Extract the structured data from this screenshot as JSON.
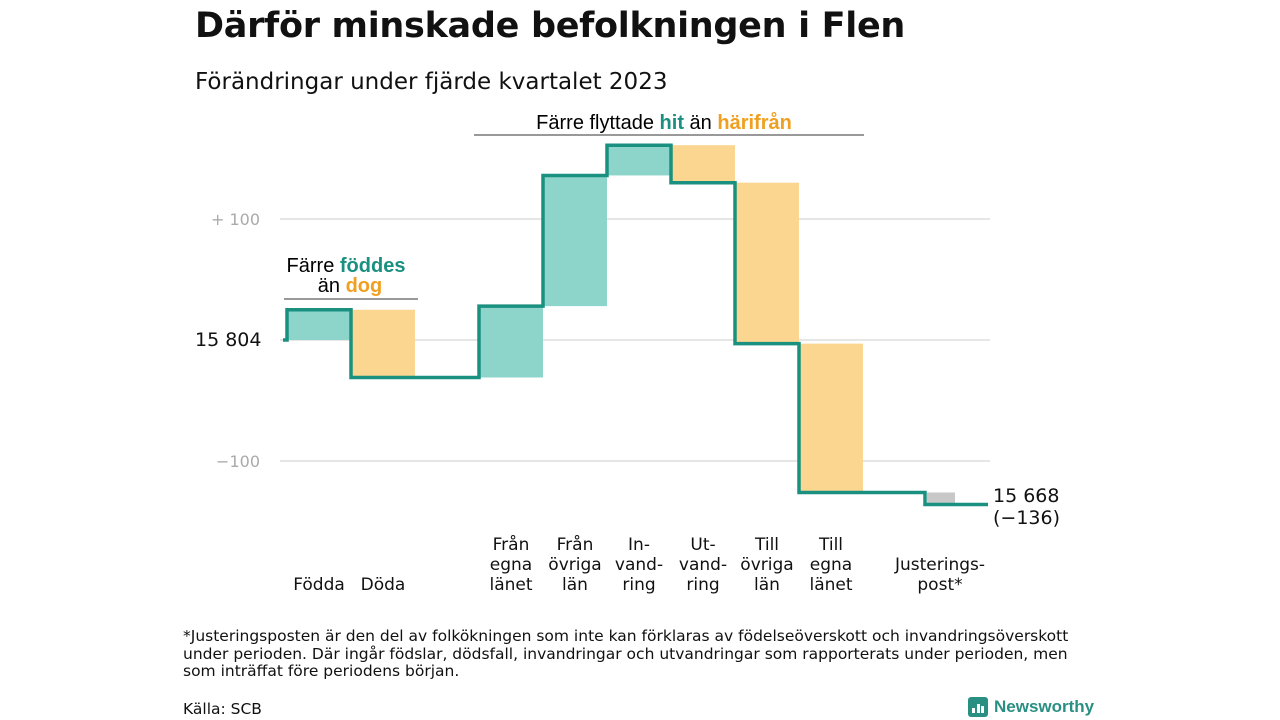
{
  "title": "Därför minskade befolkningen i Flen",
  "subtitle": "Förändringar under fjärde kvartalet 2023",
  "colors": {
    "increase": "#8dd5cb",
    "decrease": "#fad690",
    "adjustment": "#c8c8c8",
    "line": "#1a9080",
    "grid": "#dddddd"
  },
  "annotations": {
    "births": {
      "line1": "Färre",
      "hl1": "föddes",
      "line2": "än",
      "hl2": "dog"
    },
    "migration": {
      "pre": "Färre flyttade",
      "hl1": "hit",
      "mid": "än",
      "hl2": "härifrån"
    }
  },
  "chart_data": {
    "type": "waterfall",
    "title": "Därför minskade befolkningen i Flen",
    "subtitle": "Förändringar under fjärde kvartalet 2023",
    "start_label": "15  804",
    "start_value": 15804,
    "end_label": "15 668",
    "end_change_label": "(−136)",
    "end_value": 15668,
    "y_ticks": [
      {
        "value": 100,
        "label": "+  100"
      },
      {
        "value": -100,
        "label": "−100"
      }
    ],
    "ylim": [
      -140,
      170
    ],
    "grid": true,
    "categories": [
      {
        "lines": [
          "Födda"
        ],
        "value": 25
      },
      {
        "lines": [
          "Döda"
        ],
        "value": -56
      },
      {
        "lines": [
          "Från",
          "egna",
          "länet"
        ],
        "value": 59
      },
      {
        "lines": [
          "Från",
          "övriga",
          "län"
        ],
        "value": 108
      },
      {
        "lines": [
          "In-",
          "vand-",
          "ring"
        ],
        "value": 25
      },
      {
        "lines": [
          "Ut-",
          "vand-",
          "ring"
        ],
        "value": -31
      },
      {
        "lines": [
          "Till",
          "övriga",
          "län"
        ],
        "value": -133
      },
      {
        "lines": [
          "Till",
          "egna",
          "länet"
        ],
        "value": -123
      },
      {
        "lines": [
          "Justerings-",
          "post*"
        ],
        "value": -10
      }
    ],
    "x_gap_after": [
      1,
      7
    ]
  },
  "footnote": "*Justeringsposten är den del av folkökningen som inte kan förklaras av födelseöverskott och invandringsöverskott under perioden. Där ingår födslar, dödsfall, invandringar och utvandringar som rapporterats under perioden, men som inträffat före periodens början.",
  "source": "Källa: SCB",
  "brand": "Newsworthy"
}
